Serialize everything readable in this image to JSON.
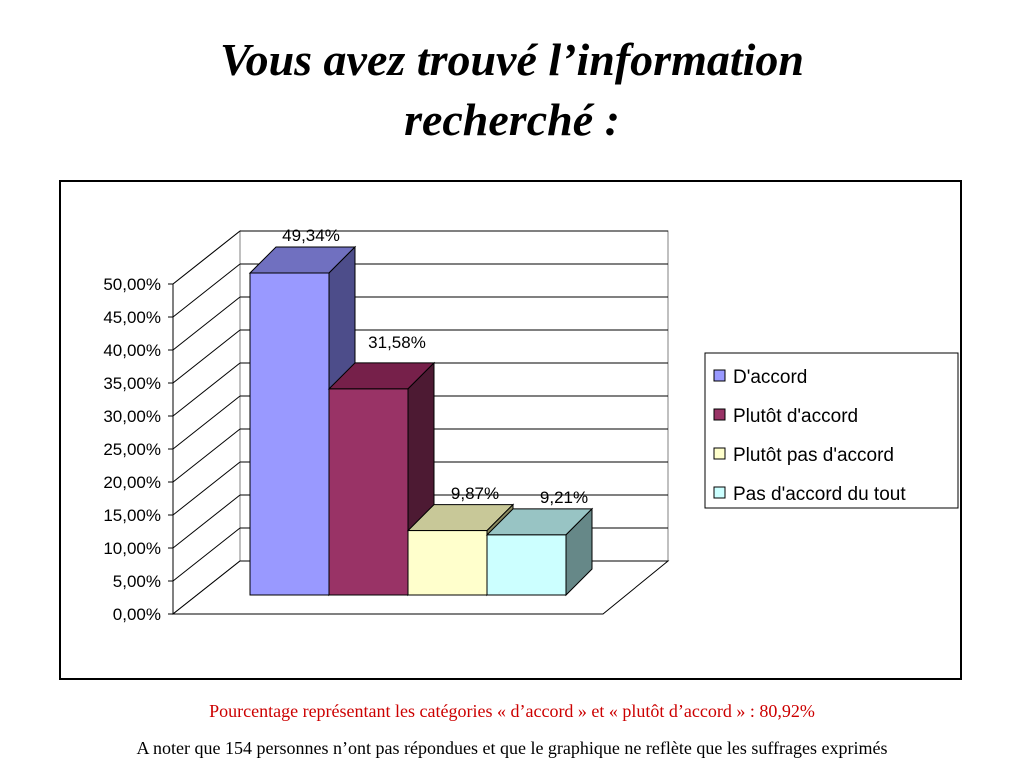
{
  "title_line1": "Vous avez trouvé l’information",
  "title_line2": "recherché :",
  "notes": {
    "percentage": "Pourcentage représentant les catégories « d’accord » et « plutôt d’accord » : 80,92%",
    "remark": "A noter que 154 personnes n’ont pas répondues et que le graphique ne reflète que les suffrages exprimés"
  },
  "chart_data": {
    "type": "bar",
    "categories": [
      "D'accord",
      "Plutôt d'accord",
      "Plutôt pas d'accord",
      "Pas d'accord du tout"
    ],
    "values": [
      49.34,
      31.58,
      9.87,
      9.21
    ],
    "data_labels": [
      "49,34%",
      "31,58%",
      "9,87%",
      "9,21%"
    ],
    "y_ticks": [
      "0,00%",
      "5,00%",
      "10,00%",
      "15,00%",
      "20,00%",
      "25,00%",
      "30,00%",
      "35,00%",
      "40,00%",
      "45,00%",
      "50,00%"
    ],
    "ylim": [
      0,
      50
    ],
    "grid": true,
    "three_d": true,
    "legend_position": "right",
    "colors": {
      "front": [
        "#9999ff",
        "#993366",
        "#ffffcc",
        "#ccffff"
      ],
      "top": [
        "#7070c0",
        "#76204a",
        "#c8c898",
        "#98c4c4"
      ],
      "side": [
        "#4d4d8a",
        "#4d1a33",
        "#8a8a60",
        "#668888"
      ]
    }
  }
}
